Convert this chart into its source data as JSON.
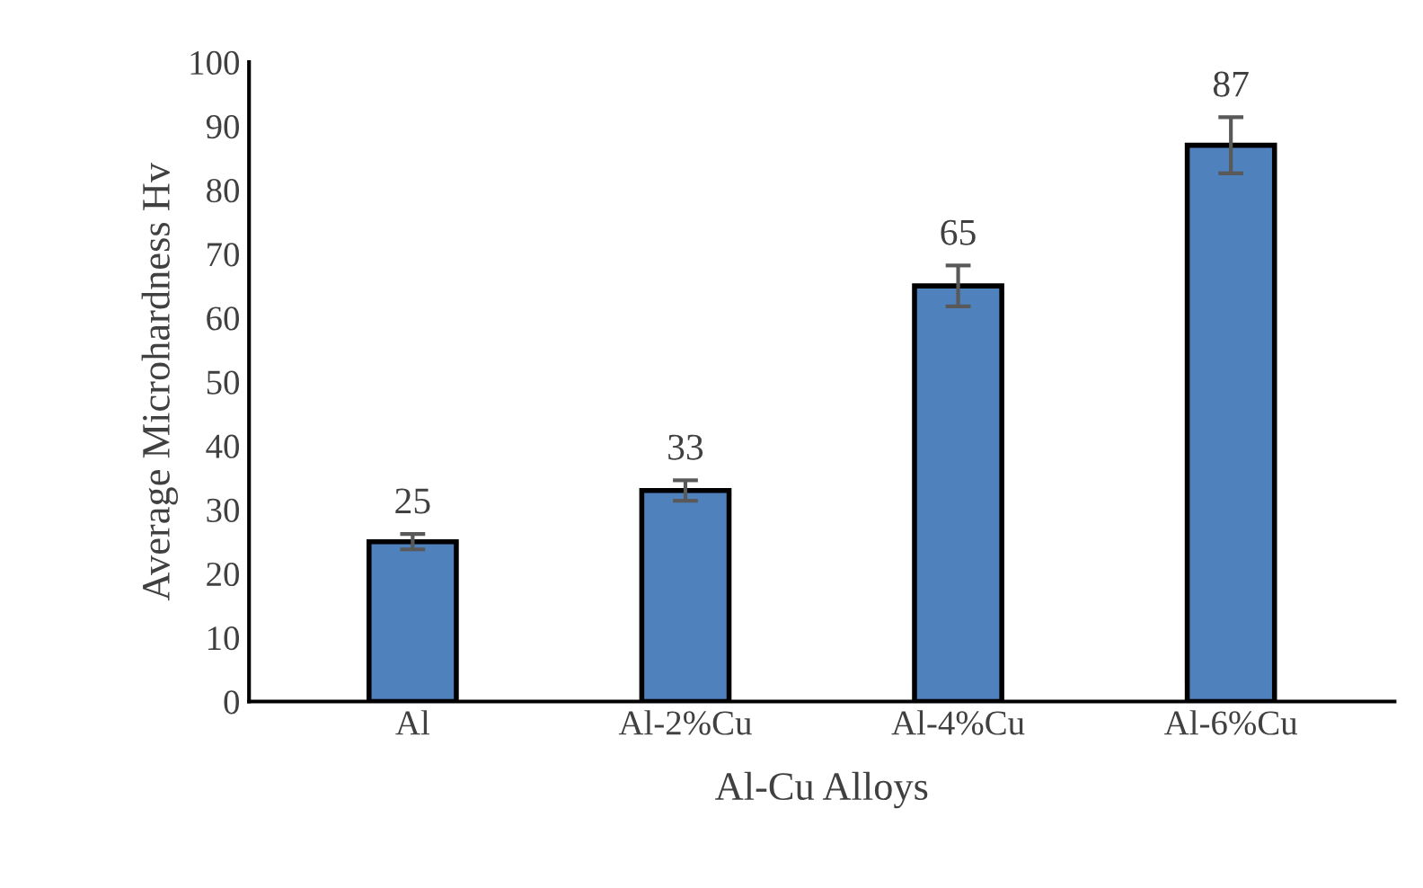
{
  "chart_data": {
    "type": "bar",
    "xlabel": "Al-Cu Alloys",
    "ylabel": "Average Microhardness Hv",
    "categories": [
      "Al",
      "Al-2%Cu",
      "Al-4%Cu",
      "Al-6%Cu"
    ],
    "values": [
      25,
      33,
      65,
      87
    ],
    "errors": [
      1.2,
      1.6,
      3.2,
      4.4
    ],
    "color": "#4f81bd",
    "ylim": [
      0,
      100
    ],
    "yticks": [
      0,
      10,
      20,
      30,
      40,
      50,
      60,
      70,
      80,
      90,
      100
    ],
    "data_labels": true,
    "grid": false
  }
}
